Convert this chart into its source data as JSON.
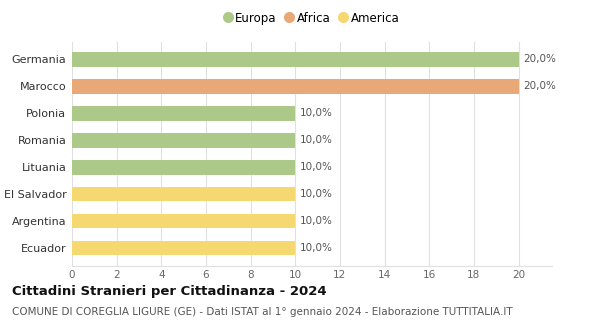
{
  "categories": [
    "Ecuador",
    "Argentina",
    "El Salvador",
    "Lituania",
    "Romania",
    "Polonia",
    "Marocco",
    "Germania"
  ],
  "values": [
    10,
    10,
    10,
    10,
    10,
    10,
    20,
    20
  ],
  "colors": [
    "#f5d870",
    "#f5d870",
    "#f5d870",
    "#adc98a",
    "#adc98a",
    "#adc98a",
    "#e8a878",
    "#adc98a"
  ],
  "value_labels": [
    "10,0%",
    "10,0%",
    "10,0%",
    "10,0%",
    "10,0%",
    "10,0%",
    "20,0%",
    "20,0%"
  ],
  "legend_labels": [
    "Europa",
    "Africa",
    "America"
  ],
  "legend_colors": [
    "#adc98a",
    "#e8a878",
    "#f5d870"
  ],
  "xlim": [
    0,
    21.5
  ],
  "xticks": [
    0,
    2,
    4,
    6,
    8,
    10,
    12,
    14,
    16,
    18,
    20
  ],
  "title": "Cittadini Stranieri per Cittadinanza - 2024",
  "subtitle": "COMUNE DI COREGLIA LIGURE (GE) - Dati ISTAT al 1° gennaio 2024 - Elaborazione TUTTITALIA.IT",
  "title_fontsize": 9.5,
  "subtitle_fontsize": 7.5,
  "bar_height": 0.55,
  "background_color": "#ffffff",
  "grid_color": "#e0e0e0"
}
